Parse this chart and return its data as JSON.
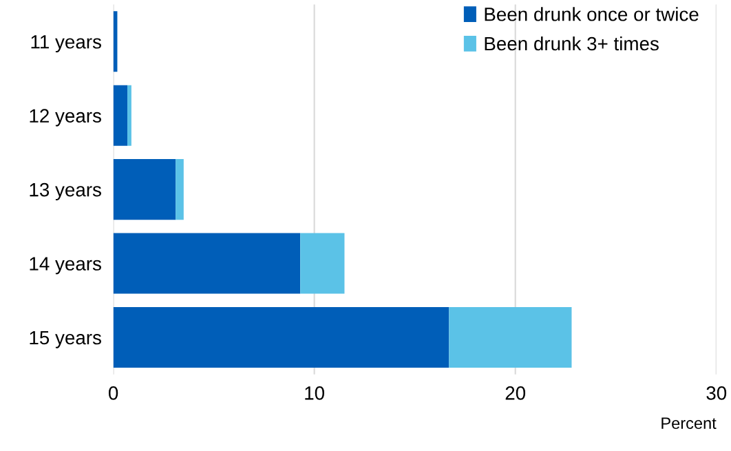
{
  "chart_data": {
    "type": "bar",
    "orientation": "horizontal",
    "stacked": true,
    "categories": [
      "11 years",
      "12 years",
      "13 years",
      "14 years",
      "15 years"
    ],
    "series": [
      {
        "name": "Been drunk once or twice",
        "color": "#005eb8",
        "values": [
          0.2,
          0.7,
          3.1,
          9.3,
          16.7
        ]
      },
      {
        "name": "Been drunk 3+ times",
        "color": "#5bc2e7",
        "values": [
          0,
          0.2,
          0.4,
          2.2,
          6.1
        ]
      }
    ],
    "xlabel": "Percent",
    "xlim": [
      0,
      30
    ],
    "xticks": [
      0,
      10,
      20,
      30
    ],
    "grid": "x",
    "legend": "top right"
  }
}
